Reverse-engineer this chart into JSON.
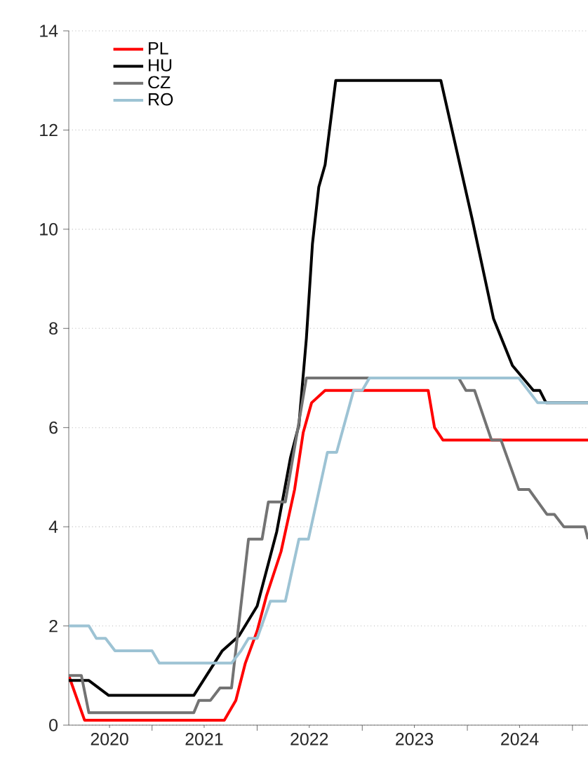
{
  "chart_data": {
    "type": "line",
    "xlim": [
      "2020-03-17",
      "2025-02-24"
    ],
    "xticks": [
      {
        "value": "2020-08-06",
        "label": "2020"
      },
      {
        "value": "2021-01-01",
        "label": null
      },
      {
        "value": "2021-07-01",
        "label": "2021"
      },
      {
        "value": "2022-01-01",
        "label": null
      },
      {
        "value": "2022-07-01",
        "label": "2022"
      },
      {
        "value": "2023-01-01",
        "label": null
      },
      {
        "value": "2023-07-01",
        "label": "2023"
      },
      {
        "value": "2024-01-01",
        "label": null
      },
      {
        "value": "2024-07-01",
        "label": "2024"
      },
      {
        "value": "2025-01-01",
        "label": null
      }
    ],
    "ylim": [
      0,
      14
    ],
    "yticks": [
      0,
      2,
      4,
      6,
      8,
      10,
      12,
      14
    ],
    "grid": "y",
    "legend": "top left",
    "marker": "none",
    "line_style": "solid",
    "series": [
      {
        "name": "PL",
        "color": "#ff0000",
        "x": [
          "2020-03-17",
          "2020-05-11",
          "2021-09-09",
          "2021-10-19",
          "2021-11-21",
          "2022-01-01",
          "2022-02-02",
          "2022-03-25",
          "2022-05-11",
          "2022-06-10",
          "2022-07-09",
          "2022-08-25",
          "2023-08-18",
          "2023-09-09",
          "2023-10-08",
          "2025-02-24"
        ],
        "values": [
          1.0,
          0.1,
          0.1,
          0.5,
          1.25,
          1.9,
          2.6,
          3.5,
          4.75,
          5.9,
          6.5,
          6.75,
          6.75,
          6.0,
          5.75,
          5.75
        ]
      },
      {
        "name": "HU",
        "color": "#000000",
        "x": [
          "2020-03-17",
          "2020-05-26",
          "2020-08-03",
          "2021-05-26",
          "2021-09-02",
          "2021-10-30",
          "2022-01-01",
          "2022-03-10",
          "2022-04-27",
          "2022-05-26",
          "2022-06-21",
          "2022-07-12",
          "2022-08-03",
          "2022-08-25",
          "2022-10-01",
          "2023-10-01",
          "2024-01-18",
          "2024-04-01",
          "2024-06-06",
          "2024-08-18",
          "2024-09-09",
          "2024-10-01",
          "2025-02-24"
        ],
        "values": [
          0.9,
          0.9,
          0.6,
          0.6,
          1.5,
          1.8,
          2.4,
          3.9,
          5.4,
          6.05,
          7.8,
          9.7,
          10.85,
          11.3,
          13.0,
          13.0,
          10.2,
          8.2,
          7.25,
          6.75,
          6.75,
          6.5,
          6.5
        ]
      },
      {
        "name": "CZ",
        "color": "#737373",
        "x": [
          "2020-03-17",
          "2020-04-30",
          "2020-05-26",
          "2021-05-26",
          "2021-06-13",
          "2021-07-23",
          "2021-08-25",
          "2021-10-04",
          "2021-12-02",
          "2022-01-18",
          "2022-02-09",
          "2022-04-09",
          "2022-06-21",
          "2023-12-02",
          "2023-12-27",
          "2024-01-26",
          "2024-03-25",
          "2024-04-27",
          "2024-06-28",
          "2024-08-03",
          "2024-10-04",
          "2024-10-30",
          "2024-12-02",
          "2025-02-13",
          "2025-02-24"
        ],
        "values": [
          1.0,
          1.0,
          0.25,
          0.25,
          0.5,
          0.5,
          0.75,
          0.75,
          3.75,
          3.75,
          4.5,
          4.5,
          7.0,
          7.0,
          6.75,
          6.75,
          5.75,
          5.75,
          4.75,
          4.75,
          4.25,
          4.25,
          4.0,
          4.0,
          3.75
        ]
      },
      {
        "name": "RO",
        "color": "#9dc3d4",
        "x": [
          "2020-03-17",
          "2020-05-26",
          "2020-06-21",
          "2020-07-23",
          "2020-08-25",
          "2021-01-01",
          "2021-01-26",
          "2021-10-04",
          "2021-11-06",
          "2021-12-02",
          "2022-01-01",
          "2022-02-16",
          "2022-04-09",
          "2022-05-26",
          "2022-06-28",
          "2022-09-02",
          "2022-10-04",
          "2022-12-02",
          "2023-01-01",
          "2023-01-26",
          "2024-06-28",
          "2024-09-02",
          "2025-02-24"
        ],
        "values": [
          2.0,
          2.0,
          1.75,
          1.75,
          1.5,
          1.5,
          1.25,
          1.25,
          1.5,
          1.75,
          1.75,
          2.5,
          2.5,
          3.75,
          3.75,
          5.5,
          5.5,
          6.75,
          6.75,
          7.0,
          7.0,
          6.5,
          6.5
        ]
      }
    ]
  }
}
